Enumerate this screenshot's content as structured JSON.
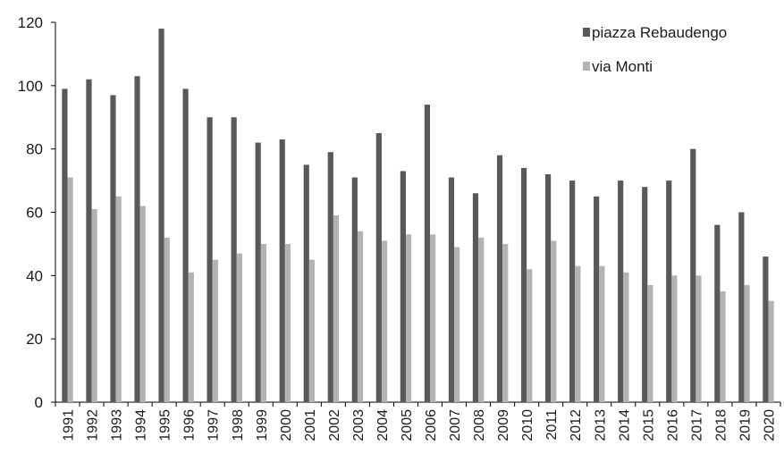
{
  "chart_data": {
    "type": "bar",
    "categories": [
      "1991",
      "1992",
      "1993",
      "1994",
      "1995",
      "1996",
      "1997",
      "1998",
      "1999",
      "2000",
      "2001",
      "2002",
      "2003",
      "2004",
      "2005",
      "2006",
      "2007",
      "2008",
      "2009",
      "2010",
      "2011",
      "2012",
      "2013",
      "2014",
      "2015",
      "2016",
      "2017",
      "2018",
      "2019",
      "2020"
    ],
    "series": [
      {
        "name": "piazza Rebaudengo",
        "color": "#595959",
        "values": [
          99,
          102,
          97,
          103,
          118,
          99,
          90,
          90,
          82,
          83,
          75,
          79,
          71,
          85,
          73,
          94,
          71,
          66,
          78,
          74,
          72,
          70,
          65,
          70,
          68,
          70,
          80,
          56,
          60,
          46
        ]
      },
      {
        "name": "via Monti",
        "color": "#b3b3b3",
        "values": [
          71,
          61,
          65,
          62,
          52,
          41,
          45,
          47,
          50,
          50,
          45,
          59,
          54,
          51,
          53,
          53,
          49,
          52,
          50,
          42,
          51,
          43,
          43,
          41,
          37,
          40,
          40,
          35,
          37,
          32
        ]
      }
    ],
    "ylim": [
      0,
      120
    ],
    "yticks": [
      0,
      20,
      40,
      60,
      80,
      100,
      120
    ],
    "grid": false,
    "legend": "top-right",
    "title": "",
    "xlabel": "",
    "ylabel": ""
  }
}
